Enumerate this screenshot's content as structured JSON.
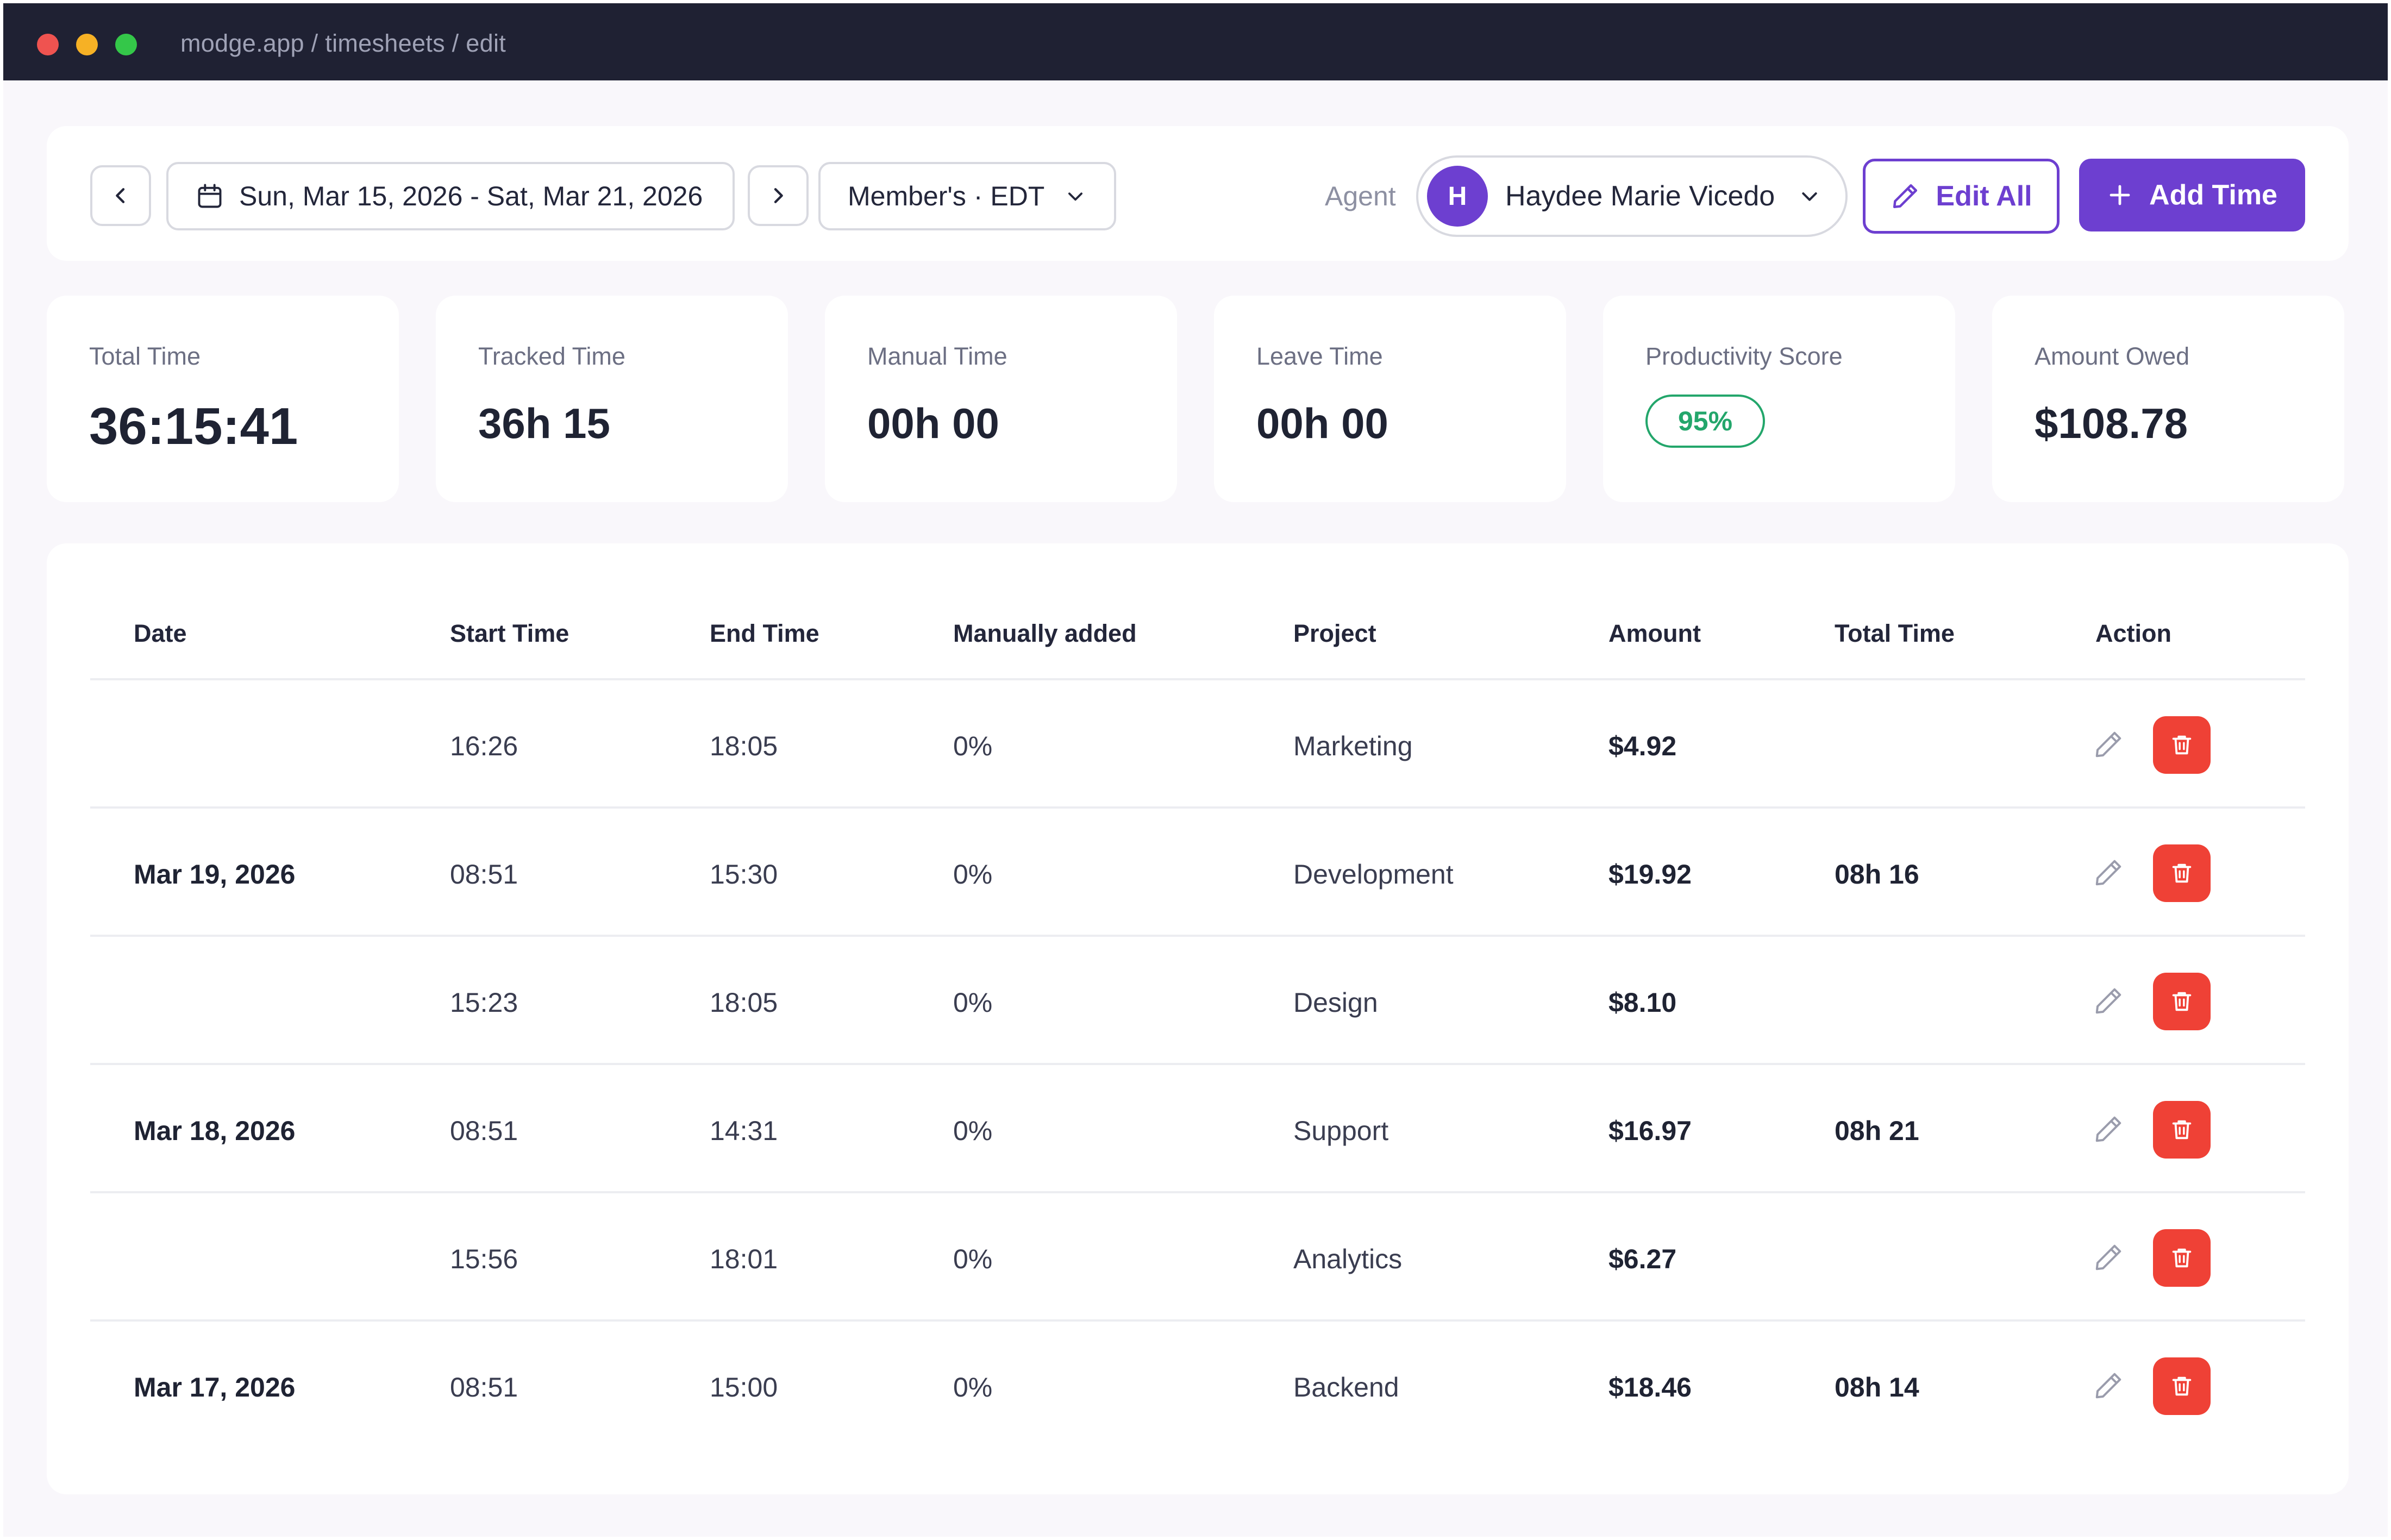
{
  "window": {
    "url": "modge.app / timesheets / edit"
  },
  "toolbar": {
    "date_range": "Sun, Mar 15, 2026 - Sat, Mar 21, 2026",
    "timezone": "Member's · EDT",
    "agent_label": "Agent",
    "agent_initial": "H",
    "agent_name": "Haydee Marie Vicedo",
    "edit_all_label": "Edit All",
    "add_time_label": "Add Time"
  },
  "stats": {
    "total_time": {
      "label": "Total Time",
      "value": "36:15:41"
    },
    "tracked_time": {
      "label": "Tracked Time",
      "value": "36h 15"
    },
    "manual_time": {
      "label": "Manual Time",
      "value": "00h 00"
    },
    "leave_time": {
      "label": "Leave Time",
      "value": "00h 00"
    },
    "productivity": {
      "label": "Productivity Score",
      "value": "95%"
    },
    "amount_owed": {
      "label": "Amount Owed",
      "value": "$108.78"
    }
  },
  "table": {
    "headers": {
      "date": "Date",
      "start": "Start Time",
      "end": "End Time",
      "manual": "Manually added",
      "project": "Project",
      "amount": "Amount",
      "total": "Total Time",
      "action": "Action"
    },
    "rows": [
      {
        "date": "",
        "start": "16:26",
        "end": "18:05",
        "manual": "0%",
        "project": "Marketing",
        "amount": "$4.92",
        "total": ""
      },
      {
        "date": "Mar 19, 2026",
        "start": "08:51",
        "end": "15:30",
        "manual": "0%",
        "project": "Development",
        "amount": "$19.92",
        "total": "08h 16"
      },
      {
        "date": "",
        "start": "15:23",
        "end": "18:05",
        "manual": "0%",
        "project": "Design",
        "amount": "$8.10",
        "total": ""
      },
      {
        "date": "Mar 18, 2026",
        "start": "08:51",
        "end": "14:31",
        "manual": "0%",
        "project": "Support",
        "amount": "$16.97",
        "total": "08h 21"
      },
      {
        "date": "",
        "start": "15:56",
        "end": "18:01",
        "manual": "0%",
        "project": "Analytics",
        "amount": "$6.27",
        "total": ""
      },
      {
        "date": "Mar 17, 2026",
        "start": "08:51",
        "end": "15:00",
        "manual": "0%",
        "project": "Backend",
        "amount": "$18.46",
        "total": "08h 14"
      }
    ]
  },
  "colors": {
    "accent": "#6d3fd0",
    "titlebar": "#1f2133",
    "danger": "#ef4136",
    "success": "#23a66b"
  }
}
